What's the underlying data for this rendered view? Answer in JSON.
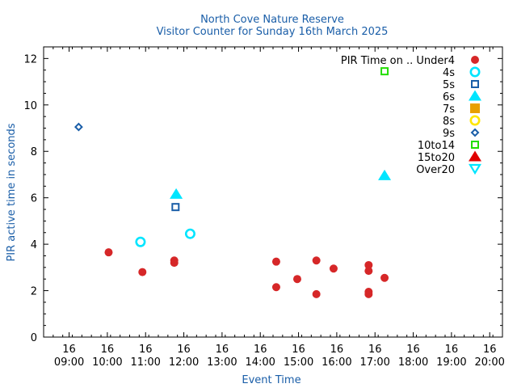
{
  "chart_data": {
    "type": "scatter",
    "title": "North Cove Nature Reserve",
    "subtitle": "Visitor Counter for Sunday 16th March 2025",
    "xlabel": "Event Time",
    "ylabel": "PIR active time in seconds",
    "title_color": "#1a5ea8",
    "xlim": [
      "2025-03-16 08:20",
      "2025-03-16 20:20"
    ],
    "ylim": [
      0,
      12.5
    ],
    "yticks": [
      0,
      2,
      4,
      6,
      8,
      10,
      12
    ],
    "xticks": [
      {
        "t": "2025-03-16 09:00",
        "label": [
          "16",
          "09:00"
        ]
      },
      {
        "t": "2025-03-16 10:00",
        "label": [
          "16",
          "10:00"
        ]
      },
      {
        "t": "2025-03-16 11:00",
        "label": [
          "16",
          "11:00"
        ]
      },
      {
        "t": "2025-03-16 12:00",
        "label": [
          "16",
          "12:00"
        ]
      },
      {
        "t": "2025-03-16 13:00",
        "label": [
          "16",
          "13:00"
        ]
      },
      {
        "t": "2025-03-16 14:00",
        "label": [
          "16",
          "14:00"
        ]
      },
      {
        "t": "2025-03-16 15:00",
        "label": [
          "16",
          "15:00"
        ]
      },
      {
        "t": "2025-03-16 16:00",
        "label": [
          "16",
          "16:00"
        ]
      },
      {
        "t": "2025-03-16 17:00",
        "label": [
          "16",
          "17:00"
        ]
      },
      {
        "t": "2025-03-16 18:00",
        "label": [
          "16",
          "18:00"
        ]
      },
      {
        "t": "2025-03-16 19:00",
        "label": [
          "16",
          "19:00"
        ]
      },
      {
        "t": "2025-03-16 20:00",
        "label": [
          "16",
          "20:00"
        ]
      }
    ],
    "grid": false,
    "legend_position": "top-right",
    "series": [
      {
        "name": "PIR Time on .. Under4",
        "marker": "circle-filled",
        "color": "#d62728",
        "points": [
          {
            "x": "2025-03-16 10:02",
            "y": 3.65
          },
          {
            "x": "2025-03-16 10:55",
            "y": 2.8
          },
          {
            "x": "2025-03-16 11:45",
            "y": 3.3
          },
          {
            "x": "2025-03-16 11:45",
            "y": 3.2
          },
          {
            "x": "2025-03-16 14:25",
            "y": 3.25
          },
          {
            "x": "2025-03-16 14:25",
            "y": 2.15
          },
          {
            "x": "2025-03-16 14:58",
            "y": 2.5
          },
          {
            "x": "2025-03-16 15:28",
            "y": 3.3
          },
          {
            "x": "2025-03-16 15:28",
            "y": 1.85
          },
          {
            "x": "2025-03-16 15:55",
            "y": 2.95
          },
          {
            "x": "2025-03-16 16:50",
            "y": 3.1
          },
          {
            "x": "2025-03-16 16:50",
            "y": 2.85
          },
          {
            "x": "2025-03-16 16:50",
            "y": 1.95
          },
          {
            "x": "2025-03-16 16:50",
            "y": 1.85
          },
          {
            "x": "2025-03-16 17:15",
            "y": 2.55
          }
        ]
      },
      {
        "name": "4s",
        "marker": "circle-open",
        "color": "#00e5ff",
        "points": [
          {
            "x": "2025-03-16 10:52",
            "y": 4.1
          },
          {
            "x": "2025-03-16 12:10",
            "y": 4.45
          }
        ]
      },
      {
        "name": "5s",
        "marker": "square-open",
        "color": "#1a5ea8",
        "points": [
          {
            "x": "2025-03-16 11:47",
            "y": 5.6
          }
        ]
      },
      {
        "name": "6s",
        "marker": "triangle-up-filled",
        "color": "#00e5ff",
        "points": [
          {
            "x": "2025-03-16 11:48",
            "y": 6.15
          },
          {
            "x": "2025-03-16 17:15",
            "y": 6.95
          }
        ]
      },
      {
        "name": "7s",
        "marker": "square-filled",
        "color": "#e8a000",
        "points": []
      },
      {
        "name": "8s",
        "marker": "circle-open",
        "color": "#ffe600",
        "points": []
      },
      {
        "name": "9s",
        "marker": "diamond-open",
        "color": "#1a5ea8",
        "points": [
          {
            "x": "2025-03-16 09:15",
            "y": 9.05
          }
        ]
      },
      {
        "name": "10to14",
        "marker": "square-open",
        "color": "#22dd00",
        "points": [
          {
            "x": "2025-03-16 17:15",
            "y": 11.45
          }
        ]
      },
      {
        "name": "15to20",
        "marker": "triangle-up-filled",
        "color": "#e00000",
        "points": []
      },
      {
        "name": "Over20",
        "marker": "triangle-down-open",
        "color": "#00e5ff",
        "points": []
      }
    ]
  }
}
